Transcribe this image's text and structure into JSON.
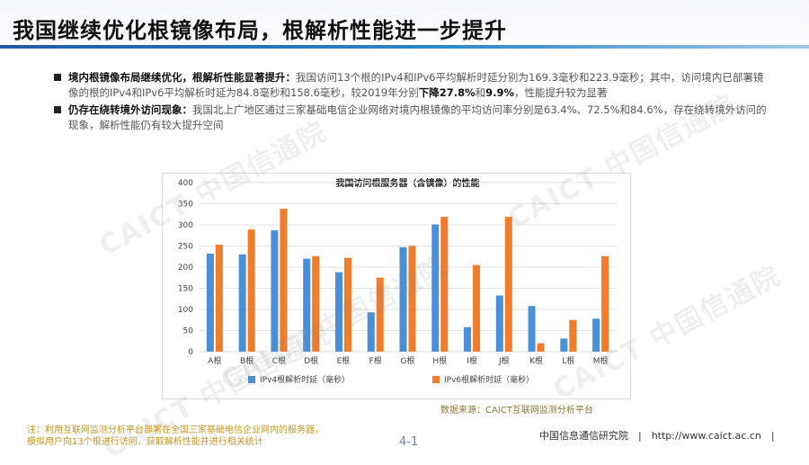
{
  "title": "我国继续优化根镜像布局，根解析性能进一步提升",
  "bullets": [
    {
      "bold": "境内根镜像布局继续优化，根解析性能显著提升：",
      "text_1": "我国访问13个根的IPv4和IPv6平均解析时延分别为169.3毫秒和223.9毫秒；其中，访问境内已部署镜像的根的IPv4和IPv6平均解析时延为84.8毫秒和158.6毫秒，较2019年分别",
      "hl_1": "下降27.8%",
      "text_2": "和",
      "hl_2": "9.9%",
      "text_3": "，性能提升较为显著"
    },
    {
      "bold": "仍存在绕转境外访问现象：",
      "text_1": "我国北上广地区通过三家基础电信企业网络对境内根镜像的平均访问率分别是63.4%、72.5%和84.6%，存在绕转境外访问的现象，解析性能仍有较大提升空间"
    }
  ],
  "chart_data": {
    "type": "bar",
    "title": "我国访问根服务器（含镜像）的性能",
    "categories": [
      "A根",
      "B根",
      "C根",
      "D根",
      "E根",
      "F根",
      "G根",
      "H根",
      "I根",
      "J根",
      "K根",
      "L根",
      "M根"
    ],
    "series": [
      {
        "name": "IPv4根解析时延（毫秒）",
        "color": "#4a90d9",
        "values": [
          232,
          230,
          287,
          220,
          188,
          93,
          247,
          301,
          58,
          133,
          108,
          31,
          78
        ]
      },
      {
        "name": "IPv6根解析时延（毫秒）",
        "color": "#f07c2c",
        "values": [
          253,
          289,
          338,
          226,
          222,
          175,
          250,
          319,
          205,
          319,
          20,
          75,
          226
        ]
      }
    ],
    "ylim": [
      0,
      400
    ],
    "yticks": [
      0,
      50,
      100,
      150,
      200,
      250,
      300,
      350,
      400
    ],
    "grid": true,
    "legend": "bottom"
  },
  "watermark": "CAICT 中国信通院",
  "source": "数据来源：CAICT互联网监测分析平台",
  "footnote": {
    "line1": "注：利用互联网监测分析平台部署在全国三家基础电信企业网内的服务器，",
    "line2": "模拟用户向13个根进行访问，获取解析性能并进行相关统计"
  },
  "page_number": "4-1",
  "org": "中国信息通信研究院　|　http://www.caict.ac.cn　|"
}
